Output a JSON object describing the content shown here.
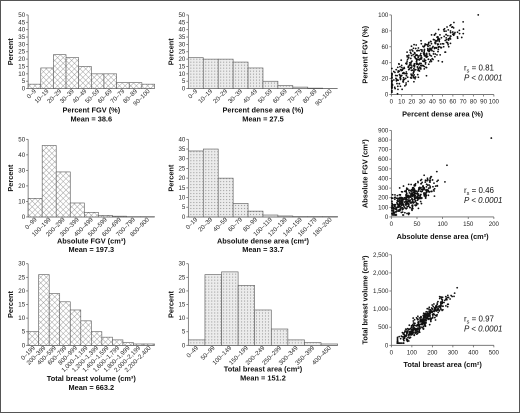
{
  "chart_data": [
    {
      "type": "bar",
      "panel": "hist-percent-fgv",
      "hatch": "crosshatch",
      "ylabel": "Percent",
      "xlabel": "Percent FGV (%)",
      "mean": "Mean = 38.6",
      "ylim": [
        0,
        50
      ],
      "yticks": [
        "0",
        "5",
        "10",
        "15",
        "20",
        "25",
        "30",
        "35",
        "40",
        "45",
        "50"
      ],
      "categories": [
        "0–9",
        "10–19",
        "20–29",
        "30–39",
        "40–49",
        "50–59",
        "60–69",
        "70–79",
        "80–89",
        "90–100"
      ],
      "values": [
        3,
        14,
        23,
        21,
        15,
        10,
        10,
        4,
        4,
        3
      ]
    },
    {
      "type": "bar",
      "panel": "hist-percent-dense-area",
      "hatch": "dots",
      "ylabel": "Percent",
      "xlabel": "Percent dense area (%)",
      "mean": "Mean = 27.5",
      "ylim": [
        0,
        50
      ],
      "yticks": [
        "0",
        "5",
        "10",
        "15",
        "20",
        "25",
        "30",
        "35",
        "40",
        "45",
        "50"
      ],
      "categories": [
        "0–9",
        "10–19",
        "20–29",
        "30–39",
        "40–49",
        "50–59",
        "60–69",
        "70–79",
        "80–89",
        "90–100"
      ],
      "values": [
        21,
        20,
        20,
        18,
        14,
        5,
        2,
        1,
        0.3,
        0
      ]
    },
    {
      "type": "scatter",
      "panel": "scatter-fgv-vs-dense",
      "ylabel": "Percent FGV (%)",
      "xlabel": "Percent dense area (%)",
      "xlim": [
        0,
        100
      ],
      "ylim": [
        0,
        100
      ],
      "xticks": [
        "0",
        "10",
        "20",
        "30",
        "40",
        "50",
        "60",
        "70",
        "80",
        "90",
        "100"
      ],
      "yticks": [
        "0",
        "20",
        "40",
        "60",
        "80",
        "100"
      ],
      "rs": "r = 0.81",
      "p": "P < 0.0001"
    },
    {
      "type": "bar",
      "panel": "hist-absolute-fgv",
      "hatch": "crosshatch",
      "ylabel": "Percent",
      "xlabel": "Absolute FGV (cm³)",
      "mean": "Mean = 197.3",
      "ylim": [
        0,
        50
      ],
      "yticks": [
        "0",
        "10",
        "20",
        "30",
        "40",
        "50"
      ],
      "categories": [
        "0–99",
        "100–199",
        "200–299",
        "300–399",
        "400–499",
        "500–599",
        "600–699",
        "700–799",
        "800–900"
      ],
      "values": [
        12,
        46,
        29,
        9,
        3,
        1,
        0.5,
        0.2,
        0.2
      ]
    },
    {
      "type": "bar",
      "panel": "hist-absolute-dense-area",
      "hatch": "dots",
      "ylabel": "Percent",
      "xlabel": "Absolute dense area (cm²)",
      "mean": "Mean = 33.7",
      "ylim": [
        0,
        40
      ],
      "yticks": [
        "0",
        "5",
        "10",
        "15",
        "20",
        "25",
        "30",
        "35",
        "40"
      ],
      "categories": [
        "0–19",
        "20–39",
        "40–59",
        "60–79",
        "80–99",
        "100–119",
        "120–139",
        "140–159",
        "160–179",
        "180–200"
      ],
      "values": [
        34,
        35,
        20,
        7,
        3,
        1,
        0.5,
        0.2,
        0.2,
        0.2
      ]
    },
    {
      "type": "scatter",
      "panel": "scatter-absfgv-vs-dense",
      "ylabel": "Absolute FGV (cm³)",
      "xlabel": "Absolute dense area (cm²)",
      "xlim": [
        0,
        200
      ],
      "ylim": [
        0,
        900
      ],
      "xticks": [
        "0",
        "50",
        "100",
        "150",
        "200"
      ],
      "yticks": [
        "0",
        "100",
        "200",
        "300",
        "400",
        "500",
        "600",
        "700",
        "800",
        "900"
      ],
      "rs": "r = 0.46",
      "p": "P < 0.0001"
    },
    {
      "type": "bar",
      "panel": "hist-total-breast-volume",
      "hatch": "crosshatch",
      "ylabel": "Percent",
      "xlabel": "Total breast volume (cm³)",
      "mean": "Mean = 663.2",
      "ylim": [
        0,
        30
      ],
      "yticks": [
        "0",
        "5",
        "10",
        "15",
        "20",
        "25",
        "30"
      ],
      "categories": [
        "0–199",
        "200–399",
        "400–599",
        "600–799",
        "800–999",
        "1,000–1,199",
        "1,200–1,399",
        "1,400–1,599",
        "1,600–1,799",
        "1,800–1,999",
        "2,000–2,199",
        "2,200–2,400"
      ],
      "values": [
        5,
        26,
        19,
        16,
        13,
        9,
        5,
        3,
        2,
        1,
        0.5,
        0.5
      ]
    },
    {
      "type": "bar",
      "panel": "hist-total-breast-area",
      "hatch": "dots",
      "ylabel": "Percent",
      "xlabel": "Total breast area (cm²)",
      "mean": "Mean = 151.2",
      "ylim": [
        0,
        30
      ],
      "yticks": [
        "0",
        "5",
        "10",
        "15",
        "20",
        "25",
        "30"
      ],
      "categories": [
        "0–49",
        "50–99",
        "100–149",
        "150–199",
        "200–249",
        "250–299",
        "300–349",
        "350–399",
        "400–450"
      ],
      "values": [
        2,
        26,
        27,
        22,
        13,
        6,
        2,
        1,
        0.5
      ]
    },
    {
      "type": "scatter",
      "panel": "scatter-volume-vs-area",
      "ylabel": "Total breast volume (cm³)",
      "xlabel": "Total breast area (cm²)",
      "xlim": [
        0,
        500
      ],
      "ylim": [
        0,
        2500
      ],
      "xticks": [
        "0",
        "100",
        "200",
        "300",
        "400",
        "500"
      ],
      "yticks": [
        "0",
        "500",
        "1,000",
        "1,500",
        "2,000",
        "2,500"
      ],
      "rs": "r = 0.97",
      "p": "P < 0.0001"
    }
  ]
}
